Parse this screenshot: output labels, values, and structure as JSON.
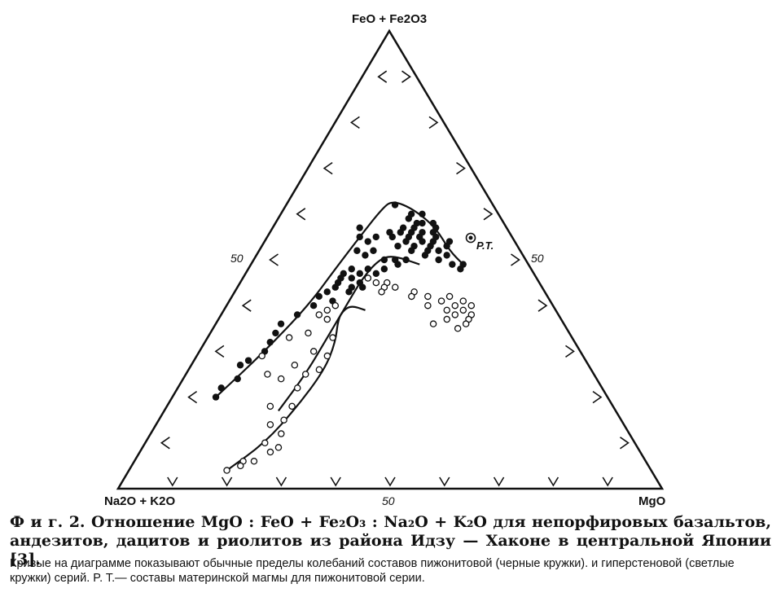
{
  "chart_data": {
    "type": "ternary",
    "apices": {
      "top": "FeO + Fe2O3",
      "left": "Na2O + K2O",
      "right": "MgO"
    },
    "tick_labels": {
      "left": "50",
      "right": "50",
      "bottom": "50"
    },
    "annotation": "P.T.",
    "series": [
      {
        "marker": "filled",
        "points": [
          [
            62,
            18,
            20
          ],
          [
            58,
            16,
            26
          ],
          [
            60,
            14,
            26
          ],
          [
            56,
            20,
            24
          ],
          [
            55,
            17,
            28
          ],
          [
            57,
            13,
            30
          ],
          [
            53,
            19,
            28
          ],
          [
            54,
            15,
            31
          ],
          [
            52,
            17,
            31
          ],
          [
            51,
            14,
            35
          ],
          [
            55,
            22,
            23
          ],
          [
            56,
            18,
            26
          ],
          [
            54,
            20,
            26
          ],
          [
            58,
            15,
            27
          ],
          [
            57,
            17,
            26
          ],
          [
            53,
            16,
            31
          ],
          [
            55,
            14,
            31
          ],
          [
            56,
            16,
            28
          ],
          [
            54,
            17,
            29
          ],
          [
            52,
            20,
            28
          ],
          [
            53,
            13,
            34
          ],
          [
            57,
            19,
            24
          ],
          [
            59,
            17,
            24
          ],
          [
            55,
            19,
            26
          ],
          [
            60,
            16,
            24
          ],
          [
            58,
            13,
            29
          ],
          [
            56,
            14,
            30
          ],
          [
            52,
            15,
            33
          ],
          [
            51,
            18,
            31
          ],
          [
            50,
            16,
            34
          ],
          [
            53,
            22,
            25
          ],
          [
            54,
            12,
            34
          ],
          [
            56,
            22,
            22
          ],
          [
            50,
            22,
            28
          ],
          [
            49,
            14,
            37
          ],
          [
            48,
            13,
            39
          ],
          [
            49,
            12,
            39
          ],
          [
            55,
            25,
            20
          ],
          [
            54,
            27,
            19
          ],
          [
            52,
            27,
            21
          ],
          [
            57,
            27,
            16
          ],
          [
            55,
            28,
            17
          ],
          [
            52,
            30,
            18
          ],
          [
            50,
            26,
            24
          ],
          [
            51,
            29,
            20
          ],
          [
            48,
            33,
            19
          ],
          [
            48,
            30,
            22
          ],
          [
            47,
            35,
            18
          ],
          [
            47,
            32,
            21
          ],
          [
            46,
            36,
            18
          ],
          [
            44,
            38,
            18
          ],
          [
            42,
            42,
            16
          ],
          [
            43,
            40,
            17
          ],
          [
            41,
            40,
            19
          ],
          [
            40,
            44,
            16
          ],
          [
            38,
            48,
            14
          ],
          [
            36,
            52,
            12
          ],
          [
            34,
            54,
            12
          ],
          [
            32,
            56,
            12
          ],
          [
            30,
            58,
            12
          ],
          [
            28,
            62,
            10
          ],
          [
            27,
            64,
            9
          ],
          [
            24,
            66,
            10
          ],
          [
            22,
            70,
            8
          ],
          [
            20,
            72,
            8
          ],
          [
            44,
            35,
            21
          ],
          [
            45,
            33,
            22
          ],
          [
            46,
            31,
            23
          ],
          [
            47,
            29,
            24
          ],
          [
            48,
            27,
            25
          ],
          [
            49,
            24,
            27
          ],
          [
            50,
            24,
            26
          ],
          [
            46,
            34,
            20
          ],
          [
            45,
            37,
            18
          ],
          [
            44,
            33,
            23
          ],
          [
            43,
            36,
            21
          ]
        ]
      },
      {
        "marker": "open",
        "points": [
          [
            46,
            31,
            23
          ],
          [
            45,
            28,
            27
          ],
          [
            44,
            27,
            29
          ],
          [
            43,
            24,
            33
          ],
          [
            42,
            22,
            36
          ],
          [
            41,
            20,
            39
          ],
          [
            42,
            18,
            40
          ],
          [
            40,
            18,
            42
          ],
          [
            39,
            20,
            41
          ],
          [
            41,
            16,
            43
          ],
          [
            40,
            15,
            45
          ],
          [
            39,
            17,
            44
          ],
          [
            38,
            19,
            43
          ],
          [
            38,
            16,
            46
          ],
          [
            37,
            17,
            46
          ],
          [
            36,
            18,
            46
          ],
          [
            35,
            20,
            45
          ],
          [
            37,
            21,
            42
          ],
          [
            42,
            25,
            33
          ],
          [
            40,
            23,
            37
          ],
          [
            36,
            24,
            40
          ],
          [
            44,
            29,
            27
          ],
          [
            43,
            30,
            27
          ],
          [
            45,
            30,
            25
          ],
          [
            40,
            40,
            20
          ],
          [
            39,
            42,
            19
          ],
          [
            38,
            44,
            18
          ],
          [
            37,
            43,
            20
          ],
          [
            33,
            44,
            23
          ],
          [
            30,
            49,
            21
          ],
          [
            29,
            47,
            24
          ],
          [
            26,
            50,
            24
          ],
          [
            25,
            53,
            22
          ],
          [
            22,
            56,
            22
          ],
          [
            18,
            63,
            19
          ],
          [
            18,
            59,
            23
          ],
          [
            15,
            62,
            23
          ],
          [
            14,
            65,
            21
          ],
          [
            12,
            64,
            24
          ],
          [
            10,
            68,
            22
          ],
          [
            9,
            66,
            25
          ],
          [
            8,
            68,
            24
          ],
          [
            6,
            74,
            20
          ],
          [
            6,
            72,
            22
          ],
          [
            5,
            75,
            20
          ],
          [
            4,
            78,
            18
          ],
          [
            33,
            52,
            15
          ],
          [
            34,
            48,
            18
          ],
          [
            29,
            59,
            12
          ],
          [
            27,
            54,
            19
          ],
          [
            25,
            60,
            15
          ],
          [
            24,
            58,
            18
          ]
        ]
      }
    ]
  },
  "caption": {
    "title": "Ф и г. 2. Отношение MgO : FeO + Fe₂O₃ : Na₂O + K₂O для непорфировых базальтов, андезитов, дацитов и риолитов из района Идзу — Хаконе в центральной Японии [3].",
    "note": "Кривые на диаграмме показывают обычные пределы колебаний составов пижонитовой (черные кружки). и гиперстеновой (светлые кружки) серий. P. T.— составы материнской магмы для пижонитовой серии."
  }
}
